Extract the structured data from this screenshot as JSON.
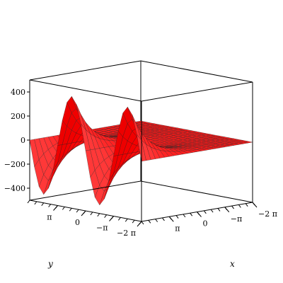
{
  "chart_data": {
    "type": "surface3d",
    "title": "",
    "xlabel": "x",
    "ylabel": "y",
    "zlabel": "",
    "xlim": [
      -6.2832,
      6.2832
    ],
    "ylim": [
      -6.2832,
      6.2832
    ],
    "zlim": [
      -500,
      500
    ],
    "x_ticks": [
      {
        "value": -6.2832,
        "label": "−2 π"
      },
      {
        "value": -3.1416,
        "label": "−π"
      },
      {
        "value": 0,
        "label": "0"
      },
      {
        "value": 3.1416,
        "label": "π"
      }
    ],
    "y_ticks": [
      {
        "value": -6.2832,
        "label": "−2 π"
      },
      {
        "value": -3.1416,
        "label": "−π"
      },
      {
        "value": 0,
        "label": "0"
      },
      {
        "value": 3.1416,
        "label": "π"
      }
    ],
    "z_ticks": [
      {
        "value": 400,
        "label": "400"
      },
      {
        "value": 200,
        "label": "200"
      },
      {
        "value": 0,
        "label": "0"
      },
      {
        "value": -200,
        "label": "−200"
      },
      {
        "value": -400,
        "label": "−400"
      }
    ],
    "surface": {
      "form": "z = A·exp(k·x)·sin(y)",
      "amplitude": 430,
      "decay": 0.55,
      "grid_divisions": 24
    },
    "grid": false,
    "box": true,
    "colors": {
      "surface": "#ff1a1a",
      "mesh": "#222222",
      "box": "#000000"
    }
  }
}
